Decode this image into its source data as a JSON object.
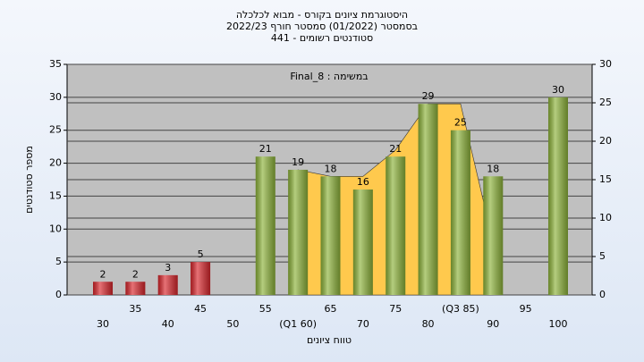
{
  "chart_data": {
    "type": "bar",
    "title_lines": [
      "היסטוגרמת ציונים בקורס - מבוא לכלכלה",
      "בסמסטר  (01/2022)  סמסטר חורף 2022/23",
      "סטודנטים רשומים - 441"
    ],
    "annotation": "Final_8 : במשימה",
    "y_label": "מספר סטודנטים",
    "x_label": "טווח ציונים",
    "categories": [
      "30",
      "35",
      "40",
      "45",
      "50",
      "55",
      "(Q1 60)",
      "65",
      "70",
      "75",
      "80",
      "(Q3 85)",
      "90",
      "95",
      "100"
    ],
    "series": [
      {
        "type": "area",
        "color": "#ffc94d",
        "values": [
          null,
          null,
          null,
          null,
          null,
          null,
          19,
          18,
          18,
          22,
          29,
          29,
          8,
          null,
          null
        ]
      },
      {
        "type": "bar",
        "values": [
          2,
          2,
          3,
          5,
          null,
          21,
          19,
          18,
          16,
          21,
          29,
          25,
          18,
          null,
          30
        ],
        "colors": [
          "#d9262c",
          "#d9262c",
          "#d9262c",
          "#d9262c",
          null,
          "#8db33a",
          "#8db33a",
          "#8db33a",
          "#8db33a",
          "#8db33a",
          "#8db33a",
          "#8db33a",
          "#8db33a",
          null,
          "#8db33a"
        ]
      }
    ],
    "ylim": [
      0,
      35
    ],
    "yticks": [
      0,
      5,
      10,
      15,
      20,
      25,
      30,
      35
    ],
    "y2lim": [
      0,
      30
    ],
    "y2ticks": [
      0,
      5,
      10,
      15,
      20,
      25,
      30
    ],
    "grid": true
  }
}
